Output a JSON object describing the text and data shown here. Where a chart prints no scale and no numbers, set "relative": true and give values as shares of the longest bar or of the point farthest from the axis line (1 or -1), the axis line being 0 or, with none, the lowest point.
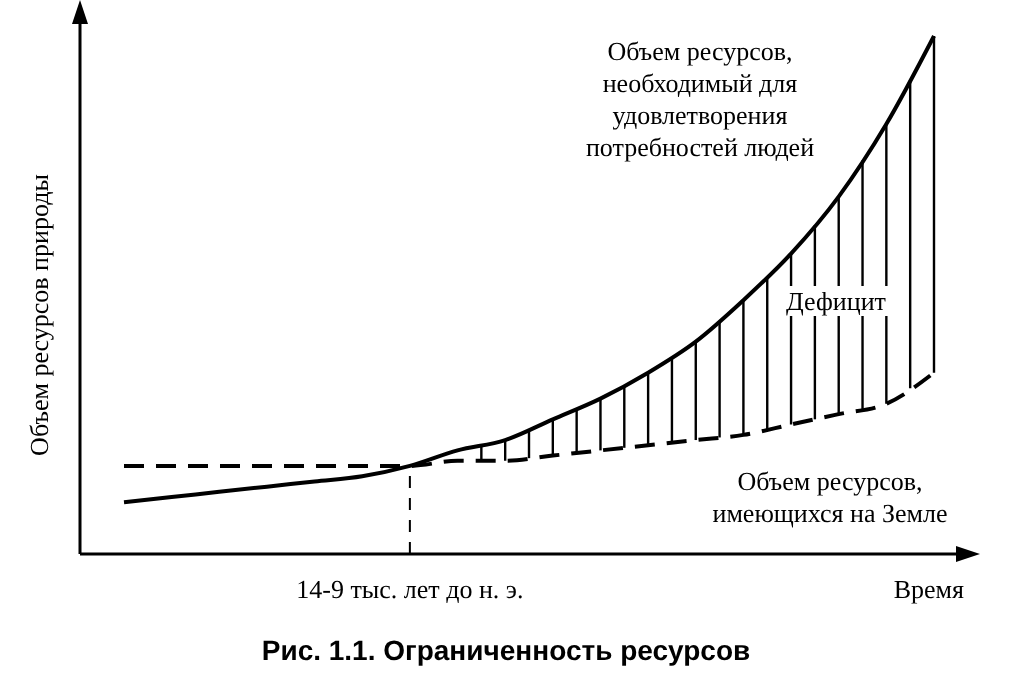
{
  "chart_data": {
    "type": "line",
    "relative": true,
    "title": "Рис. 1.1. Ограниченность ресурсов",
    "xlabel": "Время",
    "ylabel": "Объем ресурсов природы",
    "categories": [
      null,
      null,
      null,
      null,
      null,
      null,
      null,
      null,
      null,
      null,
      null,
      null,
      null,
      null,
      null,
      null,
      null,
      null
    ],
    "series": [
      {
        "name": "Объем ресурсов,\nнеобходимый для\nудовлетворения\nпотребностей людей",
        "color": "#000000",
        "line_style": "solid",
        "values": [
          0.1,
          0.11,
          0.12,
          0.13,
          0.14,
          0.15,
          0.17,
          0.2,
          0.22,
          0.26,
          0.3,
          0.35,
          0.41,
          0.49,
          0.58,
          0.69,
          0.83,
          1
        ]
      },
      {
        "name": "Объем ресурсов,\nимеющихся на Земле",
        "color": "#000000",
        "line_style": "dashed",
        "values": [
          0.17,
          0.17,
          0.17,
          0.17,
          0.17,
          0.17,
          0.17,
          0.18,
          0.18,
          0.19,
          0.2,
          0.21,
          0.22,
          0.23,
          0.25,
          0.27,
          0.29,
          0.35
        ]
      }
    ],
    "annotations": [
      "14-9 тыс. лет до н. э.",
      "Дефицит"
    ]
  }
}
